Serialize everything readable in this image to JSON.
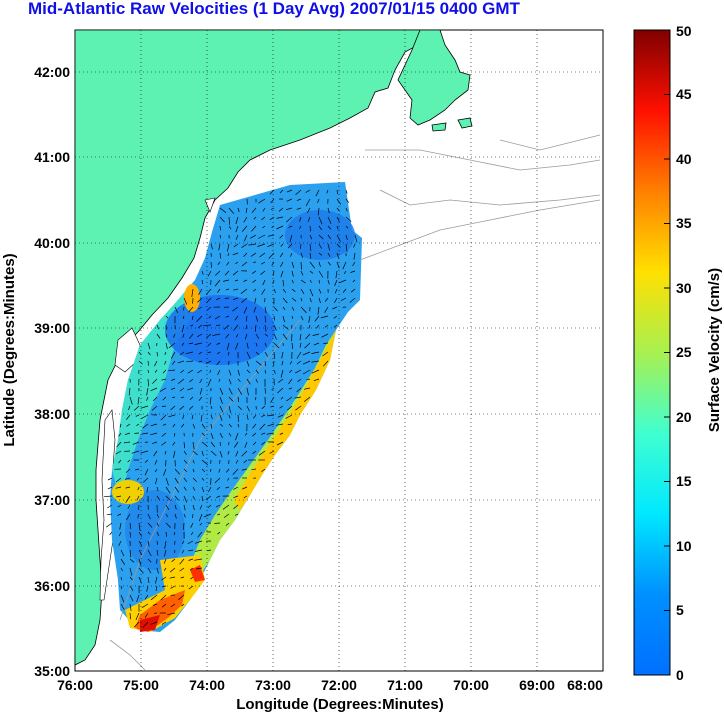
{
  "title": "Mid-Atlantic Raw Velocities (1 Day Avg) 2007/01/15 0400 GMT",
  "map": {
    "xlabel": "Longitude (Degrees:Minutes)",
    "ylabel": "Latitude (Degrees:Minutes)",
    "lon_ticks": [
      "76:00",
      "75:00",
      "74:00",
      "73:00",
      "72:00",
      "71:00",
      "70:00",
      "69:00",
      "68:00"
    ],
    "lat_ticks": [
      "35:00",
      "36:00",
      "37:00",
      "38:00",
      "39:00",
      "40:00",
      "41:00",
      "42:00"
    ],
    "land_color": "#5df2b1",
    "grid": true
  },
  "colorbar": {
    "label": "Surface Velocity (cm/s)",
    "ticks": [
      "0",
      "5",
      "10",
      "15",
      "20",
      "25",
      "30",
      "35",
      "40",
      "45",
      "50"
    ],
    "min": 0,
    "max": 50,
    "colormap": "jet"
  }
}
